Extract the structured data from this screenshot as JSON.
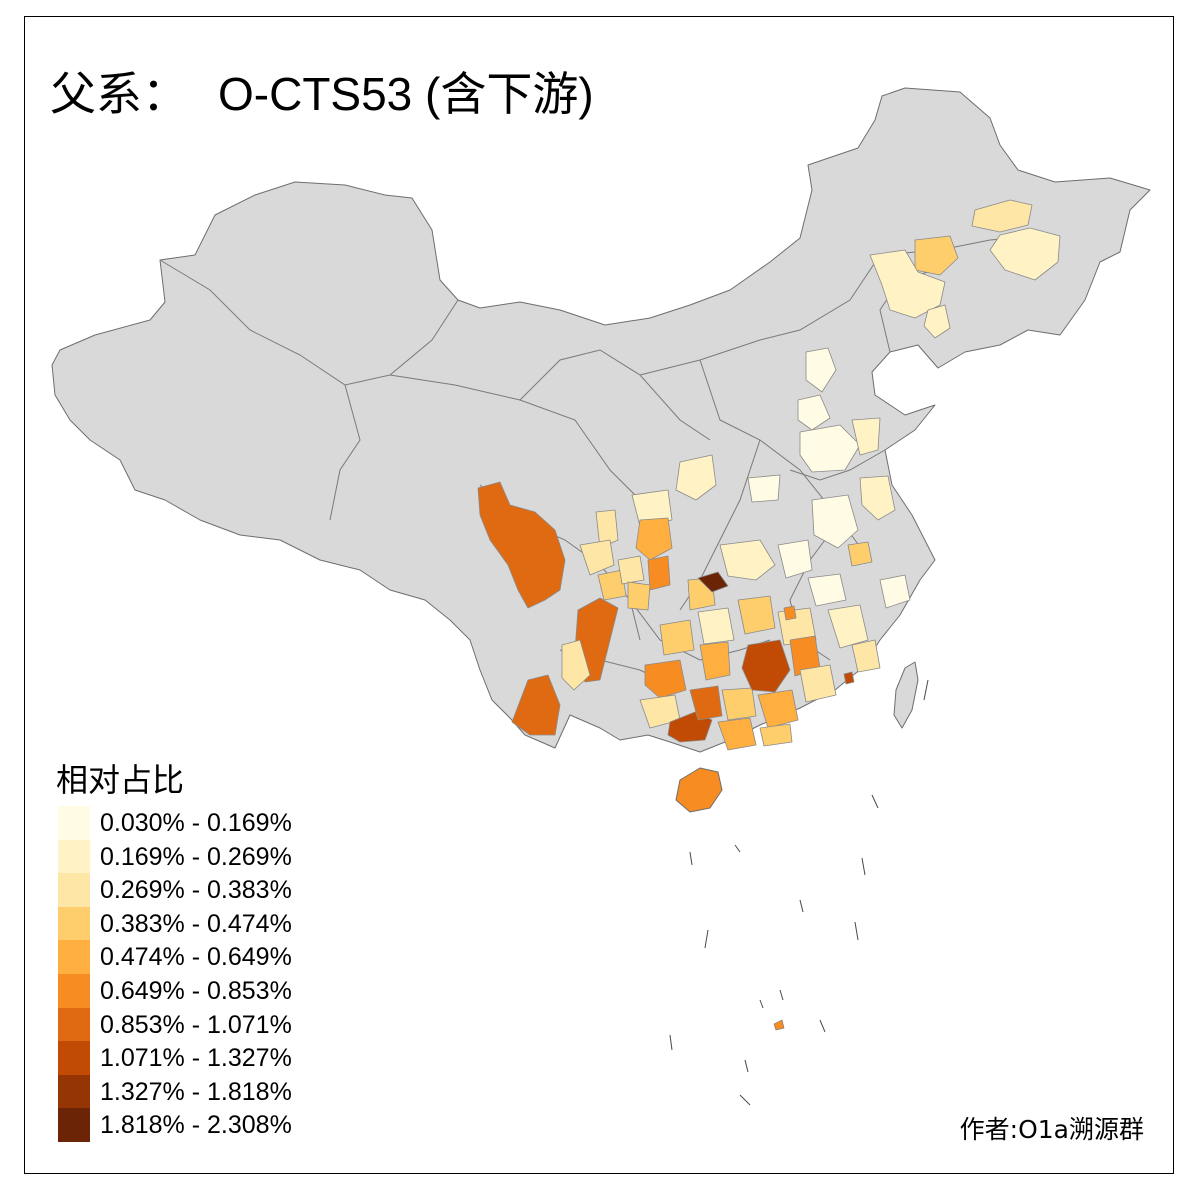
{
  "title": {
    "prefix": "父系：",
    "haplogroup": "O-CTS53 (含下游)"
  },
  "legend": {
    "title": "相对占比",
    "bins": [
      {
        "label": "0.030% - 0.169%",
        "color": "#fffbe5"
      },
      {
        "label": "0.169% - 0.269%",
        "color": "#fff3c5"
      },
      {
        "label": "0.269% - 0.383%",
        "color": "#fee6a6"
      },
      {
        "label": "0.383% - 0.474%",
        "color": "#fece6c"
      },
      {
        "label": "0.474% - 0.649%",
        "color": "#feaf40"
      },
      {
        "label": "0.649% - 0.853%",
        "color": "#f78c22"
      },
      {
        "label": "0.853% - 1.071%",
        "color": "#e06a11"
      },
      {
        "label": "1.071% - 1.327%",
        "color": "#c14a04"
      },
      {
        "label": "1.327% - 1.818%",
        "color": "#963504"
      },
      {
        "label": "1.818% - 2.308%",
        "color": "#6b2506"
      }
    ]
  },
  "no_data_color": "#d9d9d9",
  "author": "作者:O1a溯源群"
}
